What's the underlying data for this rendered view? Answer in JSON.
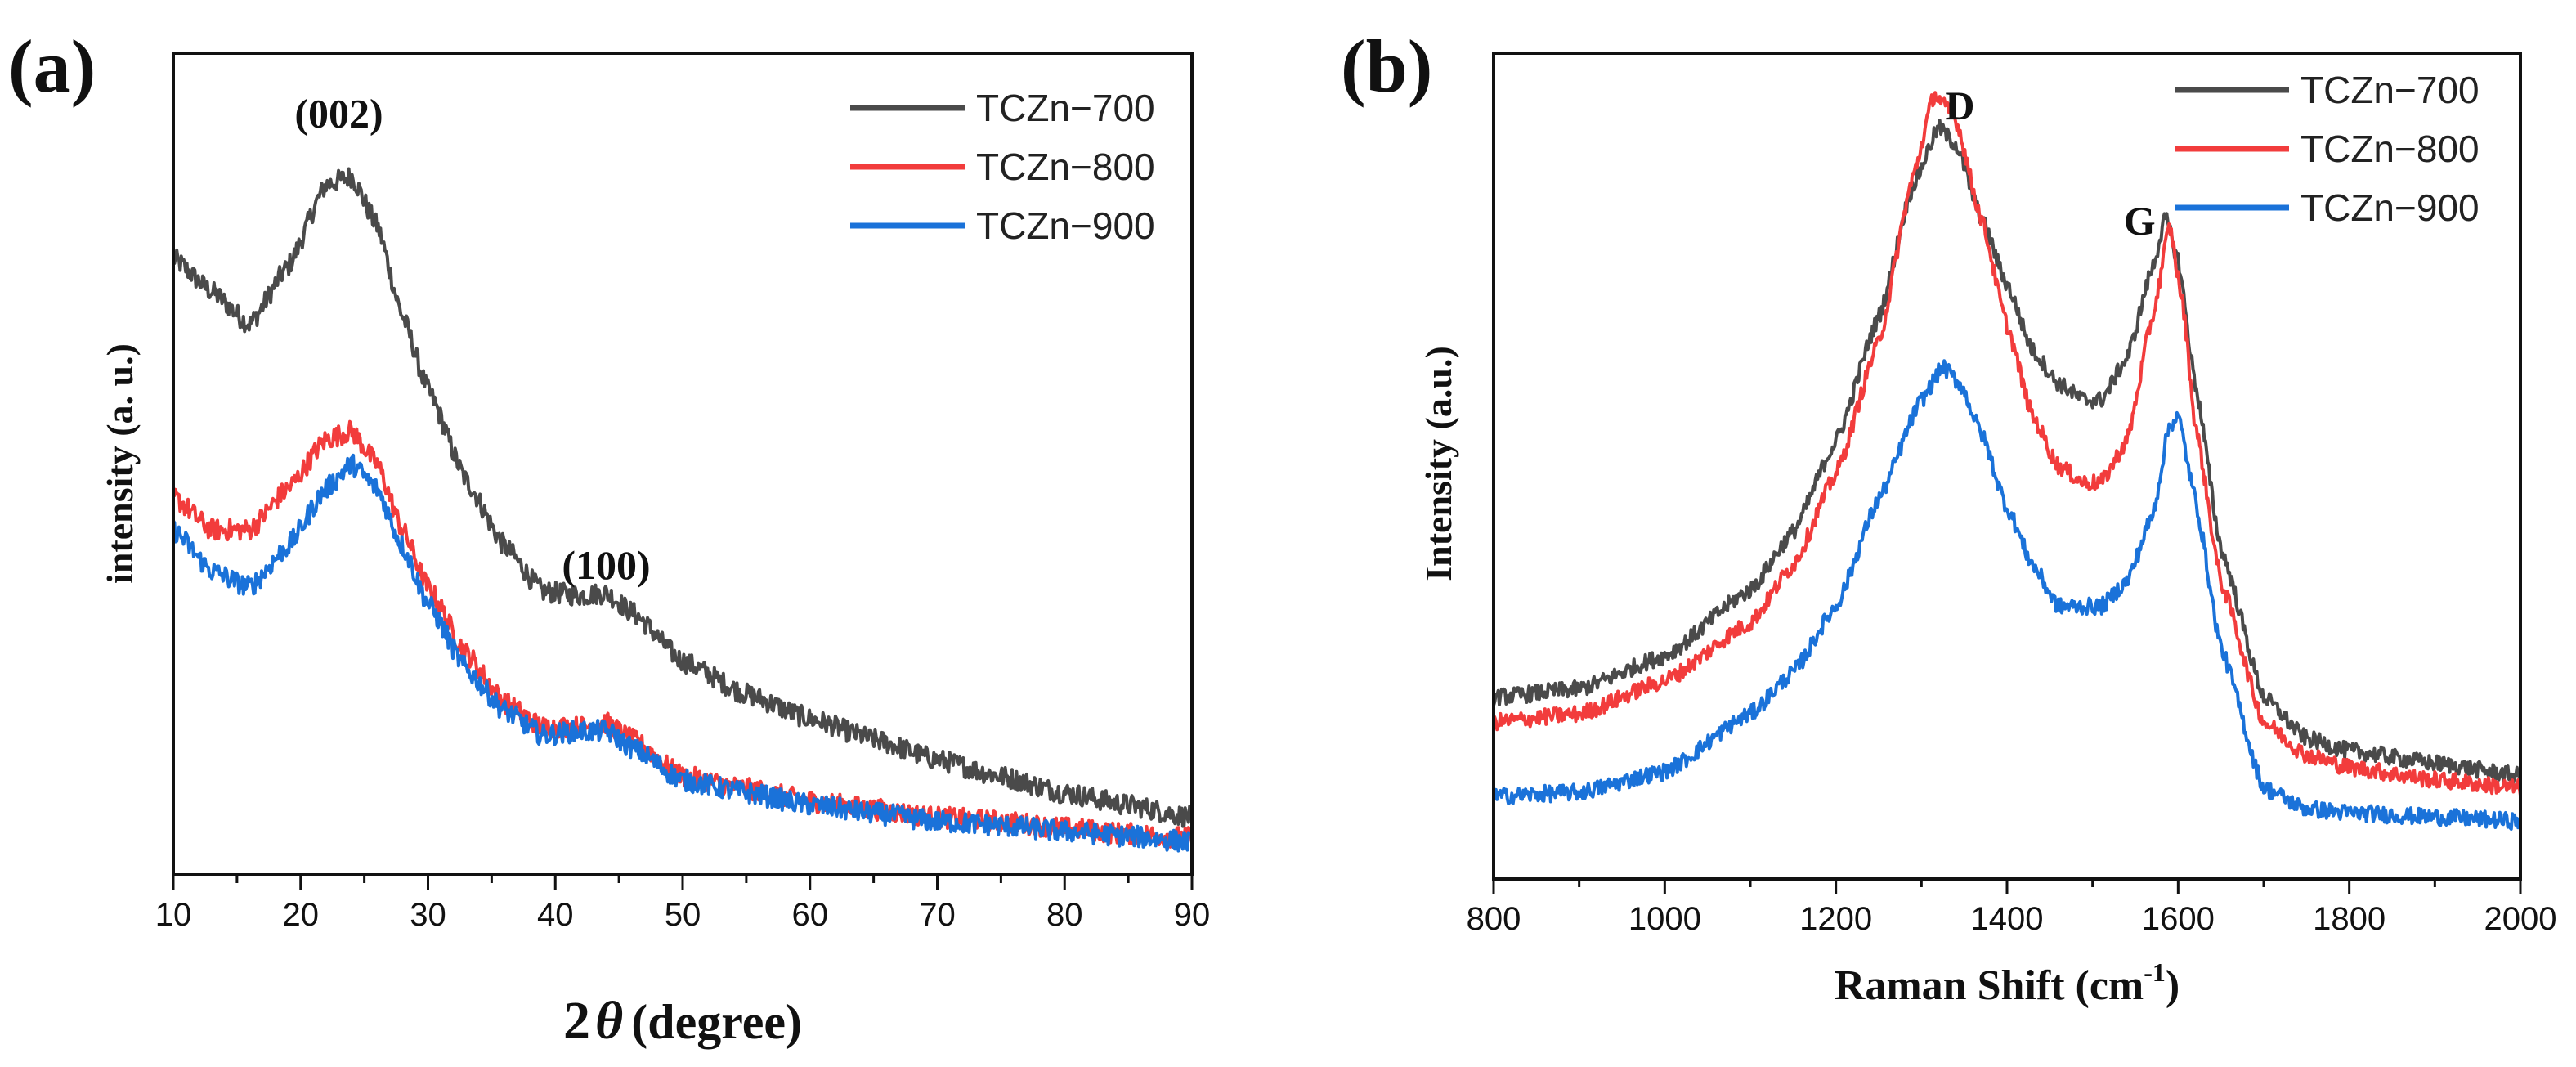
{
  "chart_data": [
    {
      "panel_label": "(a)",
      "type": "line",
      "xlabel_prefix": "2",
      "xlabel_symbol": "θ",
      "xlabel_suffix": "(degree)",
      "ylabel": "intensity (a. u.)",
      "xlim": [
        10,
        90
      ],
      "ylim": [
        0,
        100
      ],
      "x_ticks": [
        10,
        20,
        30,
        40,
        50,
        60,
        70,
        80,
        90
      ],
      "y_tick_labels": false,
      "legend_position": "top-right",
      "annotations": [
        {
          "text": "(002)",
          "x": 23,
          "y": 91
        },
        {
          "text": "(100)",
          "x": 44,
          "y": 36
        }
      ],
      "series": [
        {
          "name": "TCZn−700",
          "color": "#4a4a4a",
          "points": [
            [
              10,
              75
            ],
            [
              13,
              71
            ],
            [
              16,
              67
            ],
            [
              19,
              74
            ],
            [
              22,
              84
            ],
            [
              24,
              85
            ],
            [
              26,
              79
            ],
            [
              28,
              68
            ],
            [
              30,
              59
            ],
            [
              33,
              48
            ],
            [
              36,
              40
            ],
            [
              39,
              34.5
            ],
            [
              42,
              34
            ],
            [
              44,
              34.3
            ],
            [
              46,
              32
            ],
            [
              50,
              26
            ],
            [
              55,
              22
            ],
            [
              60,
              19
            ],
            [
              65,
              16.5
            ],
            [
              70,
              14
            ],
            [
              75,
              12
            ],
            [
              80,
              10
            ],
            [
              85,
              8.5
            ],
            [
              90,
              7
            ]
          ]
        },
        {
          "name": "TCZn−800",
          "color": "#f23c3c",
          "points": [
            [
              10,
              46
            ],
            [
              13,
              42
            ],
            [
              16,
              42
            ],
            [
              19,
              47
            ],
            [
              22,
              53
            ],
            [
              24,
              54
            ],
            [
              26,
              50
            ],
            [
              28,
              42
            ],
            [
              30,
              35
            ],
            [
              33,
              27
            ],
            [
              36,
              21
            ],
            [
              39,
              18
            ],
            [
              42,
              18
            ],
            [
              44,
              18.5
            ],
            [
              46,
              16.5
            ],
            [
              50,
              12
            ],
            [
              55,
              10.5
            ],
            [
              60,
              9
            ],
            [
              65,
              8
            ],
            [
              70,
              7
            ],
            [
              75,
              6.5
            ],
            [
              80,
              5.7
            ],
            [
              85,
              5
            ],
            [
              90,
              4.5
            ]
          ]
        },
        {
          "name": "TCZn−900",
          "color": "#1a72d9",
          "points": [
            [
              10,
              42
            ],
            [
              13,
              37
            ],
            [
              16,
              35
            ],
            [
              19,
              40
            ],
            [
              22,
              47
            ],
            [
              24,
              50
            ],
            [
              26,
              47
            ],
            [
              28,
              40
            ],
            [
              30,
              33
            ],
            [
              33,
              25
            ],
            [
              36,
              20
            ],
            [
              39,
              17
            ],
            [
              42,
              17.5
            ],
            [
              44,
              17.5
            ],
            [
              46,
              15.5
            ],
            [
              50,
              11.5
            ],
            [
              55,
              10
            ],
            [
              60,
              8.5
            ],
            [
              65,
              7.5
            ],
            [
              70,
              6.5
            ],
            [
              75,
              6
            ],
            [
              80,
              5.3
            ],
            [
              85,
              4.7
            ],
            [
              90,
              4
            ]
          ]
        }
      ]
    },
    {
      "panel_label": "(b)",
      "type": "line",
      "xlabel_prefix": "Raman Shift (cm",
      "xlabel_sup": "-1",
      "xlabel_suffix": ")",
      "ylabel": "Intensity (a.u.)",
      "xlim": [
        800,
        2000
      ],
      "ylim": [
        0,
        100
      ],
      "x_ticks": [
        800,
        1000,
        1200,
        1400,
        1600,
        1800,
        2000
      ],
      "y_tick_labels": false,
      "legend_position": "top-right",
      "annotations": [
        {
          "text": "D",
          "x": 1345,
          "y": 92
        },
        {
          "text": "G",
          "x": 1555,
          "y": 78
        }
      ],
      "series": [
        {
          "name": "TCZn−700",
          "color": "#4a4a4a",
          "points": [
            [
              800,
              22
            ],
            [
              900,
              23
            ],
            [
              1000,
              27
            ],
            [
              1100,
              35
            ],
            [
              1150,
              42
            ],
            [
              1200,
              53
            ],
            [
              1250,
              68
            ],
            [
              1290,
              84
            ],
            [
              1320,
              91
            ],
            [
              1340,
              89
            ],
            [
              1370,
              80
            ],
            [
              1400,
              72
            ],
            [
              1430,
              64
            ],
            [
              1460,
              60
            ],
            [
              1490,
              58
            ],
            [
              1510,
              58
            ],
            [
              1540,
              63
            ],
            [
              1570,
              74
            ],
            [
              1585,
              80
            ],
            [
              1600,
              75
            ],
            [
              1620,
              60
            ],
            [
              1650,
              40
            ],
            [
              1700,
              22
            ],
            [
              1750,
              17
            ],
            [
              1800,
              15.5
            ],
            [
              1900,
              14
            ],
            [
              2000,
              12.5
            ]
          ]
        },
        {
          "name": "TCZn−800",
          "color": "#f23c3c",
          "points": [
            [
              800,
              19
            ],
            [
              900,
              20
            ],
            [
              1000,
              24
            ],
            [
              1100,
              31
            ],
            [
              1150,
              38
            ],
            [
              1200,
              49
            ],
            [
              1250,
              65
            ],
            [
              1290,
              85
            ],
            [
              1315,
              95
            ],
            [
              1340,
              92
            ],
            [
              1370,
              80
            ],
            [
              1400,
              67
            ],
            [
              1430,
              56
            ],
            [
              1460,
              50
            ],
            [
              1490,
              48
            ],
            [
              1510,
              48
            ],
            [
              1540,
              53
            ],
            [
              1570,
              68
            ],
            [
              1590,
              79
            ],
            [
              1605,
              70
            ],
            [
              1620,
              55
            ],
            [
              1650,
              36
            ],
            [
              1700,
              19
            ],
            [
              1750,
              15
            ],
            [
              1800,
              13.5
            ],
            [
              1900,
              12
            ],
            [
              2000,
              11
            ]
          ]
        },
        {
          "name": "TCZn−900",
          "color": "#1a72d9",
          "points": [
            [
              800,
              10
            ],
            [
              900,
              10.5
            ],
            [
              1000,
              13
            ],
            [
              1100,
              20
            ],
            [
              1150,
              25
            ],
            [
              1200,
              33
            ],
            [
              1250,
              46
            ],
            [
              1300,
              58
            ],
            [
              1325,
              62
            ],
            [
              1345,
              60
            ],
            [
              1370,
              54
            ],
            [
              1400,
              45
            ],
            [
              1430,
              38
            ],
            [
              1460,
              33
            ],
            [
              1490,
              33
            ],
            [
              1510,
              33
            ],
            [
              1540,
              36
            ],
            [
              1570,
              44
            ],
            [
              1590,
              55
            ],
            [
              1600,
              56
            ],
            [
              1620,
              46
            ],
            [
              1650,
              28
            ],
            [
              1700,
              11
            ],
            [
              1750,
              8.5
            ],
            [
              1800,
              8
            ],
            [
              1900,
              7.5
            ],
            [
              2000,
              7
            ]
          ]
        }
      ]
    }
  ]
}
